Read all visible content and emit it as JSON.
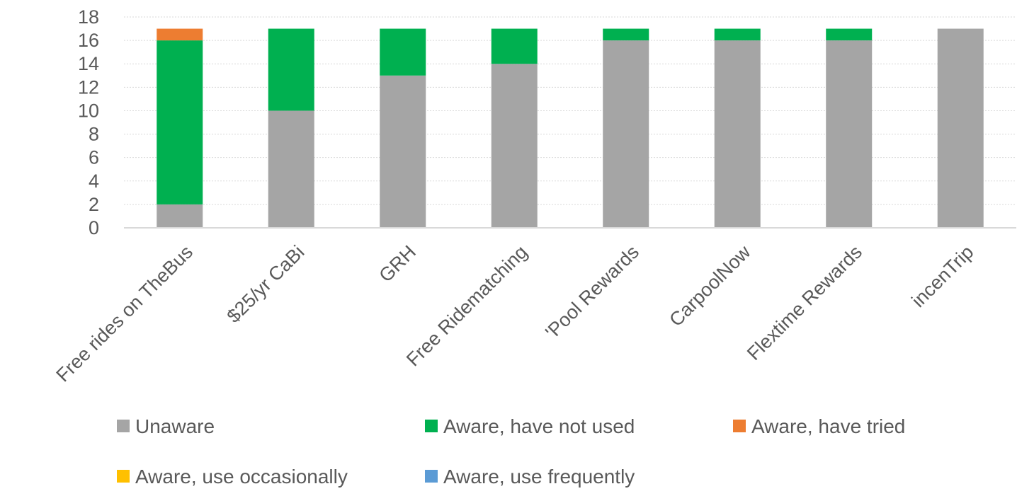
{
  "chart_data": {
    "type": "bar",
    "stacked": true,
    "categories": [
      "Free rides on TheBus",
      "$25/yr CaBi",
      "GRH",
      "Free Ridematching",
      "'Pool Rewards",
      "CarpoolNow",
      "Flextime Rewards",
      "incenTrip"
    ],
    "series": [
      {
        "name": "Unaware",
        "color": "#a5a5a5",
        "values": [
          2,
          10,
          13,
          14,
          16,
          16,
          16,
          17
        ]
      },
      {
        "name": "Aware, have not used",
        "color": "#00b050",
        "values": [
          14,
          7,
          4,
          3,
          1,
          1,
          1,
          0
        ]
      },
      {
        "name": "Aware, have tried",
        "color": "#ed7d31",
        "values": [
          1,
          0,
          0,
          0,
          0,
          0,
          0,
          0
        ]
      },
      {
        "name": "Aware, use occasionally",
        "color": "#ffc000",
        "values": [
          0,
          0,
          0,
          0,
          0,
          0,
          0,
          0
        ]
      },
      {
        "name": "Aware, use frequently",
        "color": "#5b9bd5",
        "values": [
          0,
          0,
          0,
          0,
          0,
          0,
          0,
          0
        ]
      }
    ],
    "ylim": [
      0,
      18
    ],
    "yticks": [
      0,
      2,
      4,
      6,
      8,
      10,
      12,
      14,
      16,
      18
    ],
    "grid": true,
    "legend_position": "bottom",
    "title": "",
    "xlabel": "",
    "ylabel": ""
  }
}
